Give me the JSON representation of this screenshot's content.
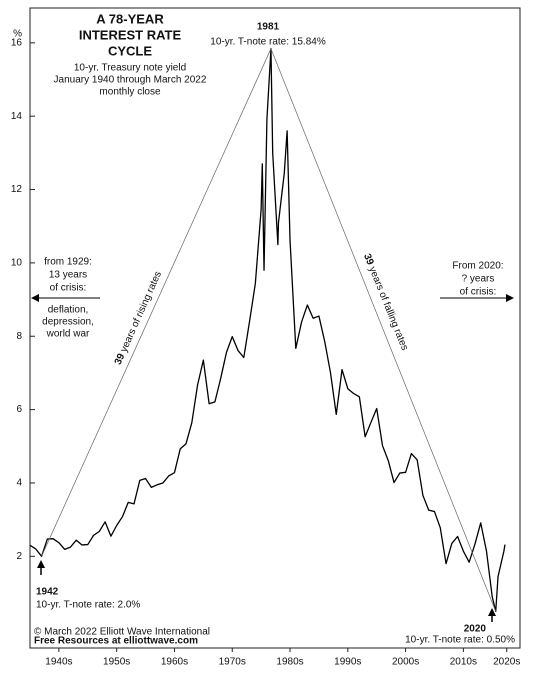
{
  "chart_data": {
    "type": "line",
    "title": [
      "A 78-YEAR",
      "INTEREST RATE",
      "CYCLE"
    ],
    "subtitle": [
      "10-yr. Treasury note yield",
      "January 1940 through March 2022",
      "monthly close"
    ],
    "y_unit": "%",
    "x": [
      1940,
      1941,
      1942,
      1943,
      1944,
      1945,
      1946,
      1947,
      1948,
      1949,
      1950,
      1951,
      1952,
      1953,
      1954,
      1955,
      1956,
      1957,
      1958,
      1959,
      1960,
      1961,
      1962,
      1963,
      1964,
      1965,
      1966,
      1967,
      1968,
      1969,
      1970,
      1971,
      1972,
      1973,
      1974,
      1975,
      1976,
      1977,
      1978,
      1979,
      1980,
      1980.2,
      1980.5,
      1981,
      1981.7,
      1982,
      1982.9,
      1983,
      1984,
      1984.5,
      1985,
      1986,
      1987,
      1988,
      1989,
      1990,
      1991,
      1992,
      1993,
      1994,
      1995,
      1996,
      1997,
      1998,
      1999,
      2000,
      2001,
      2002,
      2003,
      2004,
      2005,
      2006,
      2007,
      2008,
      2009,
      2010,
      2011,
      2012,
      2013,
      2014,
      2015,
      2016,
      2017,
      2018,
      2019,
      2020,
      2020.6,
      2021,
      2022,
      2022.2
    ],
    "series": [
      {
        "name": "10-yr. Treasury note yield",
        "color": "#000000",
        "values": [
          2.3,
          2.2,
          2.0,
          2.47,
          2.48,
          2.37,
          2.19,
          2.25,
          2.44,
          2.31,
          2.32,
          2.57,
          2.68,
          2.94,
          2.55,
          2.84,
          3.08,
          3.47,
          3.43,
          4.07,
          4.12,
          3.88,
          3.95,
          4.0,
          4.19,
          4.28,
          4.93,
          5.07,
          5.64,
          6.67,
          7.35,
          6.16,
          6.21,
          6.85,
          7.56,
          7.99,
          7.61,
          7.42,
          8.41,
          9.44,
          11.46,
          12.7,
          9.8,
          13.91,
          15.84,
          13.0,
          10.5,
          11.1,
          12.44,
          13.6,
          10.62,
          7.67,
          8.39,
          8.85,
          8.49,
          8.55,
          7.86,
          7.01,
          5.87,
          7.09,
          6.57,
          6.44,
          6.35,
          5.26,
          5.65,
          6.03,
          5.02,
          4.61,
          4.01,
          4.27,
          4.29,
          4.8,
          4.63,
          3.66,
          3.26,
          3.22,
          2.78,
          1.8,
          2.35,
          2.54,
          2.14,
          1.84,
          2.33,
          2.91,
          2.14,
          0.89,
          0.5,
          1.45,
          2.13,
          2.32
        ]
      }
    ],
    "xlim": [
      1940,
      2024.8
    ],
    "ylim": [
      -0.5,
      16.35
    ],
    "xticks": [
      {
        "value": 1945,
        "label": "1940s"
      },
      {
        "value": 1955,
        "label": "1950s"
      },
      {
        "value": 1965,
        "label": "1960s"
      },
      {
        "value": 1975,
        "label": "1970s"
      },
      {
        "value": 1985,
        "label": "1980s"
      },
      {
        "value": 1995,
        "label": "1990s"
      },
      {
        "value": 2005,
        "label": "2000s"
      },
      {
        "value": 2015,
        "label": "2010s"
      },
      {
        "value": 2022.5,
        "label": "2020s"
      }
    ],
    "yticks": [
      2,
      4,
      6,
      8,
      10,
      12,
      14,
      16
    ],
    "annotations": {
      "peak": [
        "1981",
        "10-yr. T-note rate: 15.84%"
      ],
      "low_1942": [
        "1942",
        "10-yr. T-note rate: 2.0%"
      ],
      "low_2020": [
        "2020",
        "10-yr. T-note rate: 0.50%"
      ],
      "rising": [
        "39",
        " years of rising rates"
      ],
      "falling": [
        "39",
        " years of falling rates"
      ],
      "left": [
        "from 1929:",
        "13 years",
        "of crisis:",
        "deflation,",
        "depression,",
        "world war"
      ],
      "right": [
        "From 2020:",
        "? years",
        "of crisis:"
      ]
    },
    "footer": [
      "© March 2022  Elliott Wave International",
      "Free Resources at elliottwave.com"
    ]
  }
}
